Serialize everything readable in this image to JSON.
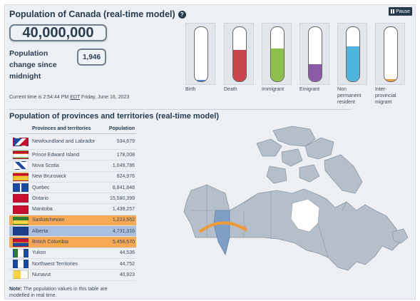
{
  "header": {
    "title": "Population of Canada (real-time model)",
    "help_icon": "question-circle-icon",
    "pause_label": "Pause"
  },
  "population": {
    "total": "40,000,000",
    "change_label": "Population change since midnight",
    "change_value": "1,946",
    "current_time_prefix": "Current time is 2:54:44 PM",
    "current_time_tz": "EDT",
    "current_time_date": "Friday, June 16, 2023"
  },
  "components": [
    {
      "label": "Birth",
      "color": "#4a7fd1",
      "fill_fraction": 0.03
    },
    {
      "label": "Death",
      "color": "#c9444a",
      "fill_fraction": 0.58
    },
    {
      "label": "Immigrant",
      "color": "#8fc04c",
      "fill_fraction": 0.6
    },
    {
      "label": "Emigrant",
      "color": "#8a5aa8",
      "fill_fraction": 0.32
    },
    {
      "label": "Non permanent resident",
      "color": "#4fb5dc",
      "fill_fraction": 0.65
    },
    {
      "label": "Inter-provincial migrant",
      "color": "#f09a36",
      "fill_fraction": 0.04
    }
  ],
  "provinces_section": {
    "title": "Population of provinces and territories (real-time model)",
    "col_name": "Provinces and territories",
    "col_pop": "Population",
    "rows": [
      {
        "name": "Newfoundland and Labrador",
        "pop": "534,679",
        "flag": "nl-flag"
      },
      {
        "name": "Prince Edward Island",
        "pop": "178,008",
        "flag": "pe-flag"
      },
      {
        "name": "Nova Scotia",
        "pop": "1,049,786",
        "flag": "ns-flag"
      },
      {
        "name": "New Brunswick",
        "pop": "824,976",
        "flag": "nb-flag"
      },
      {
        "name": "Quebec",
        "pop": "8,841,848",
        "flag": "qc-flag"
      },
      {
        "name": "Ontario",
        "pop": "15,580,399",
        "flag": "on-flag"
      },
      {
        "name": "Manitoba",
        "pop": "1,439,257",
        "flag": "mb-flag"
      },
      {
        "name": "Saskatchewan",
        "pop": "1,223,552",
        "flag": "sk-flag"
      },
      {
        "name": "Alberta",
        "pop": "4,731,316",
        "flag": "ab-flag"
      },
      {
        "name": "British Columbia",
        "pop": "5,456,570",
        "flag": "bc-flag"
      },
      {
        "name": "Yukon",
        "pop": "44,536",
        "flag": "yt-flag"
      },
      {
        "name": "Northwest Territories",
        "pop": "44,752",
        "flag": "nt-flag"
      },
      {
        "name": "Nunavut",
        "pop": "40,923",
        "flag": "nu-flag"
      }
    ],
    "note_bold": "Note:",
    "note_text": "The population values in this table are modelled in real time."
  },
  "map": {
    "land_color": "#b5bfc9",
    "highlight_color": "#7e9ec6",
    "arrow_color": "#f09a36",
    "highlighted_provinces": [
      "Alberta"
    ],
    "arrow_from": "British Columbia",
    "arrow_to": "Saskatchewan"
  }
}
